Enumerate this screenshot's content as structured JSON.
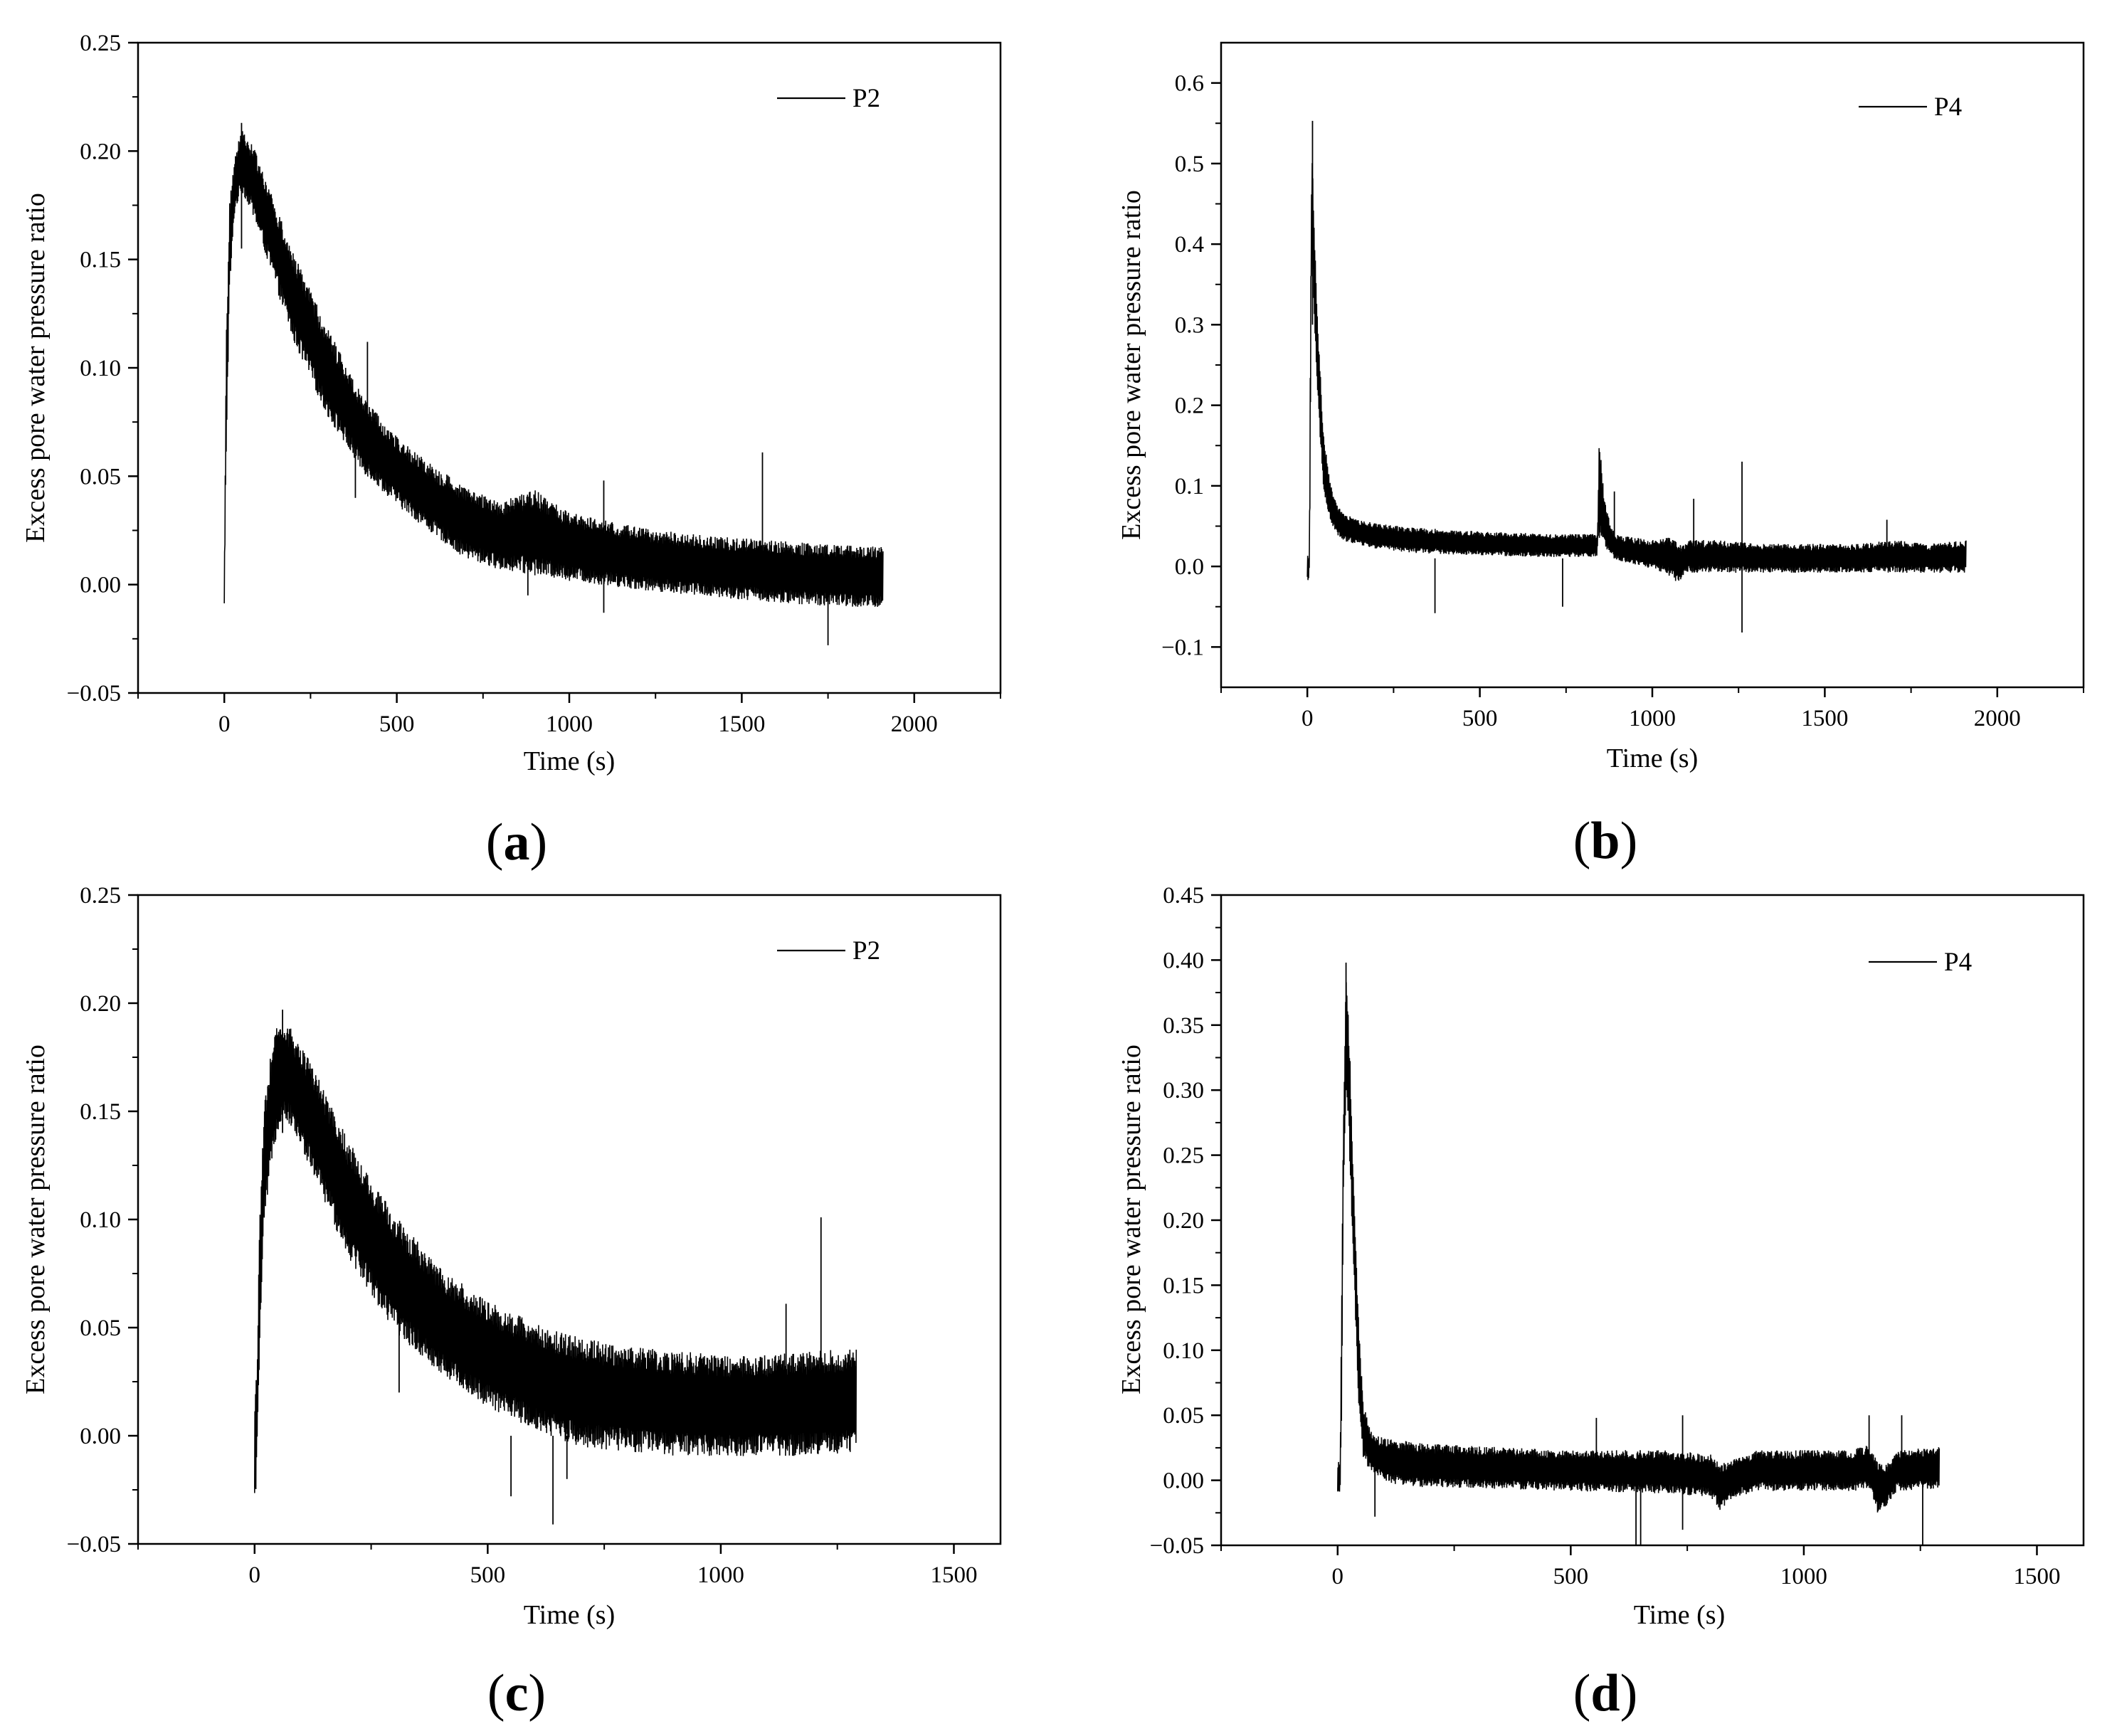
{
  "chart_data": [
    {
      "type": "line",
      "panel_label": "(a)",
      "panel_letter": "a",
      "xlabel": "Time (s)",
      "ylabel": "Excess  pore water pressure ratio",
      "xlim": [
        -250,
        2250
      ],
      "ylim": [
        -0.05,
        0.25
      ],
      "xticks": [
        0,
        500,
        1000,
        1500,
        2000
      ],
      "yticks": [
        -0.05,
        0.0,
        0.05,
        0.1,
        0.15,
        0.2,
        0.25
      ],
      "ytick_labels": [
        "−0.05",
        "0.00",
        "0.05",
        "0.10",
        "0.15",
        "0.20",
        "0.25"
      ],
      "legend": "top-right",
      "grid": false,
      "series": [
        {
          "name": "P2",
          "color": "#000000",
          "envelope": {
            "x": [
              0,
              5,
              15,
              30,
              50,
              80,
              120,
              200,
              300,
              400,
              500,
              600,
              700,
              800,
              900,
              1000,
              1200,
              1400,
              1600,
              1800,
              1910
            ],
            "upper": [
              0.018,
              0.12,
              0.18,
              0.2,
              0.212,
              0.205,
              0.19,
              0.155,
              0.12,
              0.09,
              0.07,
              0.057,
              0.047,
              0.04,
              0.046,
              0.035,
              0.028,
              0.024,
              0.022,
              0.02,
              0.019
            ],
            "lower": [
              -0.015,
              0.05,
              0.13,
              0.17,
              0.18,
              0.17,
              0.15,
              0.11,
              0.075,
              0.05,
              0.035,
              0.022,
              0.01,
              0.005,
              0.002,
              0.0,
              -0.004,
              -0.007,
              -0.01,
              -0.012,
              -0.013
            ]
          },
          "spikes": [
            [
              50,
              0.155,
              0.213
            ],
            [
              415,
              0.06,
              0.112
            ],
            [
              380,
              0.04,
              0.06
            ],
            [
              1100,
              -0.013,
              0.048
            ],
            [
              1560,
              0.005,
              0.061
            ],
            [
              1750,
              -0.028,
              0.0
            ],
            [
              880,
              -0.005,
              0.02
            ]
          ]
        }
      ]
    },
    {
      "type": "line",
      "panel_label": "(b)",
      "panel_letter": "b",
      "xlabel": "Time (s)",
      "ylabel": "Excess  pore water pressure ratio",
      "xlim": [
        -250,
        2250
      ],
      "ylim": [
        -0.15,
        0.65
      ],
      "xticks": [
        0,
        500,
        1000,
        1500,
        2000
      ],
      "yticks": [
        -0.1,
        0.0,
        0.1,
        0.2,
        0.3,
        0.4,
        0.5,
        0.6
      ],
      "ytick_labels": [
        "−0.1",
        "0.0",
        "0.1",
        "0.2",
        "0.3",
        "0.4",
        "0.5",
        "0.6"
      ],
      "legend": "top-right",
      "grid": false,
      "series": [
        {
          "name": "P4",
          "color": "#000000",
          "envelope": {
            "x": [
              0,
              5,
              8,
              12,
              20,
              30,
              45,
              60,
              80,
              100,
              150,
              200,
              300,
              500,
              700,
              840,
              845,
              850,
              860,
              880,
              900,
              1000,
              1050,
              1080,
              1100,
              1200,
              1300,
              1400,
              1500,
              1600,
              1700,
              1800,
              1910
            ],
            "upper": [
              0.015,
              0.02,
              0.3,
              0.55,
              0.42,
              0.3,
              0.18,
              0.12,
              0.085,
              0.07,
              0.06,
              0.055,
              0.05,
              0.045,
              0.042,
              0.042,
              0.168,
              0.14,
              0.09,
              0.05,
              0.04,
              0.035,
              0.04,
              0.03,
              0.035,
              0.035,
              0.03,
              0.03,
              0.03,
              0.03,
              0.035,
              0.03,
              0.035
            ],
            "lower": [
              -0.02,
              -0.02,
              0.05,
              0.4,
              0.3,
              0.2,
              0.1,
              0.06,
              0.04,
              0.03,
              0.025,
              0.02,
              0.015,
              0.012,
              0.01,
              0.01,
              0.02,
              0.03,
              0.02,
              0.01,
              0.005,
              -0.005,
              -0.015,
              -0.025,
              -0.01,
              -0.01,
              -0.01,
              -0.01,
              -0.01,
              -0.01,
              -0.01,
              -0.01,
              -0.01
            ]
          },
          "spikes": [
            [
              15,
              0.3,
              0.553
            ],
            [
              370,
              -0.058,
              0.01
            ],
            [
              740,
              -0.05,
              0.01
            ],
            [
              1260,
              -0.082,
              0.13
            ],
            [
              890,
              0.02,
              0.093
            ],
            [
              1120,
              0.0,
              0.084
            ],
            [
              1680,
              0.0,
              0.058
            ]
          ]
        }
      ]
    },
    {
      "type": "line",
      "panel_label": "(c)",
      "panel_letter": "c",
      "xlabel": "Time (s)",
      "ylabel": "Excess  pore water pressure ratio",
      "xlim": [
        -250,
        1600
      ],
      "ylim": [
        -0.05,
        0.25
      ],
      "xticks": [
        0,
        500,
        1000,
        1500
      ],
      "yticks": [
        -0.05,
        0.0,
        0.05,
        0.1,
        0.15,
        0.2,
        0.25
      ],
      "ytick_labels": [
        "−0.05",
        "0.00",
        "0.05",
        "0.10",
        "0.15",
        "0.20",
        "0.25"
      ],
      "legend": "top-right",
      "grid": false,
      "series": [
        {
          "name": "P2",
          "color": "#000000",
          "envelope": {
            "x": [
              0,
              5,
              10,
              20,
              40,
              60,
              80,
              120,
              200,
              300,
              400,
              500,
              600,
              700,
              800,
              900,
              1000,
              1100,
              1200,
              1290
            ],
            "upper": [
              0.025,
              0.04,
              0.1,
              0.16,
              0.19,
              0.195,
              0.19,
              0.175,
              0.14,
              0.105,
              0.08,
              0.065,
              0.055,
              0.048,
              0.044,
              0.042,
              0.04,
              0.04,
              0.042,
              0.043
            ],
            "lower": [
              -0.04,
              -0.02,
              0.03,
              0.09,
              0.13,
              0.145,
              0.14,
              0.12,
              0.08,
              0.045,
              0.025,
              0.01,
              0.0,
              -0.008,
              -0.01,
              -0.012,
              -0.012,
              -0.012,
              -0.012,
              -0.01
            ]
          },
          "spikes": [
            [
              60,
              0.14,
              0.197
            ],
            [
              550,
              -0.028,
              0.0
            ],
            [
              640,
              -0.041,
              0.0
            ],
            [
              670,
              -0.02,
              0.0
            ],
            [
              1140,
              0.02,
              0.061
            ],
            [
              1215,
              0.0,
              0.101
            ],
            [
              310,
              0.02,
              0.06
            ]
          ]
        }
      ]
    },
    {
      "type": "line",
      "panel_label": "(d)",
      "panel_letter": "d",
      "xlabel": "Time (s)",
      "ylabel": "Excess  pore water pressure ratio",
      "xlim": [
        -250,
        1600
      ],
      "ylim": [
        -0.05,
        0.45
      ],
      "xticks": [
        0,
        500,
        1000,
        1500
      ],
      "yticks": [
        -0.05,
        0.0,
        0.05,
        0.1,
        0.15,
        0.2,
        0.25,
        0.3,
        0.35,
        0.4,
        0.45
      ],
      "ytick_labels": [
        "−0.05",
        "0.00",
        "0.05",
        "0.10",
        "0.15",
        "0.20",
        "0.25",
        "0.30",
        "0.35",
        "0.40",
        "0.45"
      ],
      "legend": "top-right",
      "grid": false,
      "series": [
        {
          "name": "P4",
          "color": "#000000",
          "envelope": {
            "x": [
              0,
              5,
              8,
              12,
              18,
              25,
              35,
              45,
              55,
              70,
              90,
              120,
              200,
              300,
              500,
              700,
              800,
              820,
              850,
              900,
              1000,
              1100,
              1140,
              1160,
              1180,
              1200,
              1290
            ],
            "upper": [
              0.015,
              0.02,
              0.15,
              0.3,
              0.398,
              0.34,
              0.22,
              0.12,
              0.06,
              0.04,
              0.035,
              0.033,
              0.03,
              0.028,
              0.025,
              0.025,
              0.022,
              0.015,
              0.018,
              0.025,
              0.025,
              0.025,
              0.03,
              0.015,
              0.015,
              0.025,
              0.028
            ],
            "lower": [
              -0.015,
              -0.015,
              0.02,
              0.2,
              0.3,
              0.25,
              0.15,
              0.05,
              0.015,
              0.005,
              0.0,
              -0.005,
              -0.008,
              -0.008,
              -0.01,
              -0.012,
              -0.015,
              -0.025,
              -0.015,
              -0.01,
              -0.01,
              -0.01,
              -0.01,
              -0.03,
              -0.02,
              -0.01,
              -0.008
            ]
          },
          "spikes": [
            [
              18,
              0.3,
              0.398
            ],
            [
              80,
              -0.028,
              0.01
            ],
            [
              640,
              -0.06,
              0.0
            ],
            [
              650,
              -0.06,
              0.0
            ],
            [
              740,
              -0.038,
              0.05
            ],
            [
              1140,
              0.0,
              0.05
            ],
            [
              1210,
              0.0,
              0.05
            ],
            [
              1255,
              -0.05,
              0.0
            ],
            [
              555,
              0.0,
              0.048
            ]
          ]
        }
      ]
    }
  ]
}
